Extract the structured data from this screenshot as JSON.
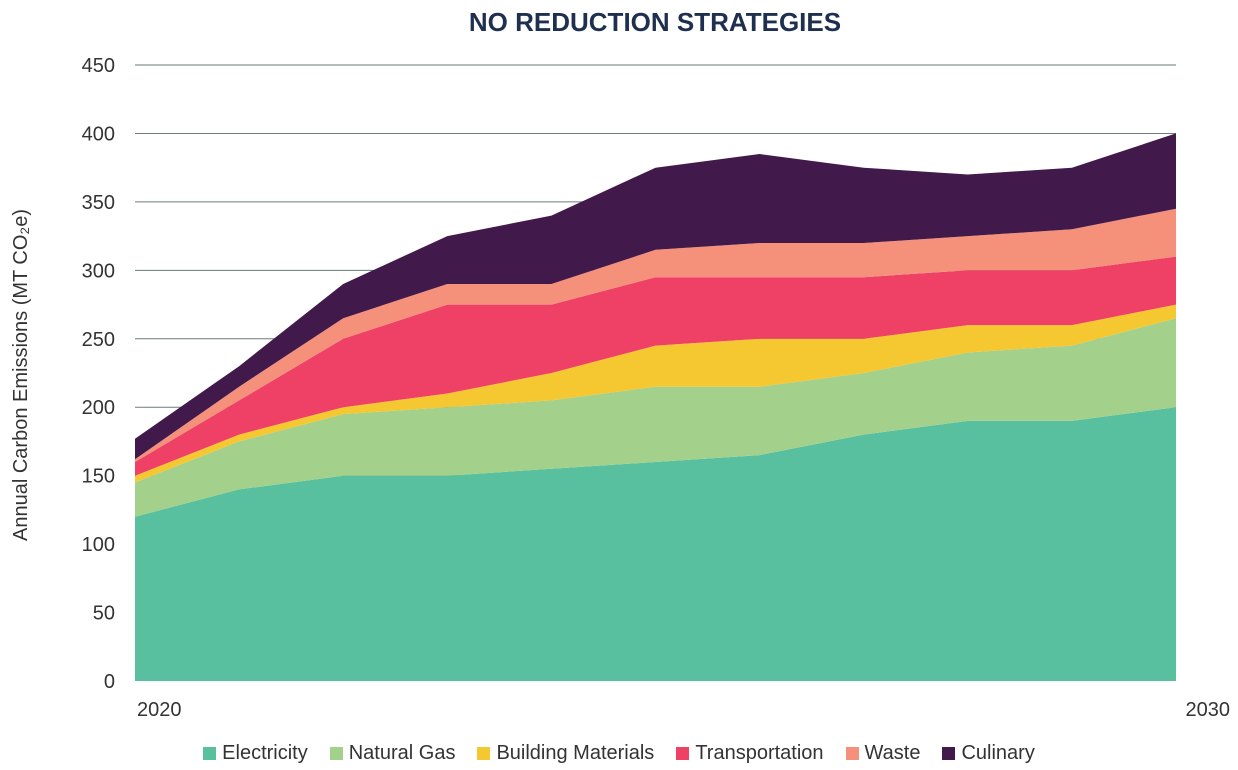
{
  "chart_data": {
    "type": "area",
    "stacked": true,
    "title": "NO REDUCTION STRATEGIES",
    "ylabel": "Annual Carbon Emissions (MT CO₂e)",
    "xlabel": "",
    "x": [
      2020,
      2021,
      2022,
      2023,
      2024,
      2025,
      2026,
      2027,
      2028,
      2029,
      2030
    ],
    "x_tick_labels": [
      "2020",
      "2030"
    ],
    "ylim": [
      0,
      450
    ],
    "y_ticks": [
      0,
      50,
      100,
      150,
      200,
      250,
      300,
      350,
      400,
      450
    ],
    "grid": "horizontal",
    "legend_position": "bottom",
    "series": [
      {
        "name": "Electricity",
        "color": "#58bf9f",
        "values": [
          120,
          140,
          150,
          150,
          155,
          160,
          165,
          180,
          190,
          190,
          200
        ]
      },
      {
        "name": "Natural Gas",
        "color": "#a3d18c",
        "values": [
          25,
          35,
          45,
          50,
          50,
          55,
          50,
          45,
          50,
          55,
          65
        ]
      },
      {
        "name": "Building Materials",
        "color": "#f5c832",
        "values": [
          5,
          5,
          5,
          10,
          20,
          30,
          35,
          25,
          20,
          15,
          10
        ]
      },
      {
        "name": "Transportation",
        "color": "#ef4066",
        "values": [
          10,
          25,
          50,
          65,
          50,
          50,
          45,
          45,
          40,
          40,
          35
        ]
      },
      {
        "name": "Waste",
        "color": "#f5907a",
        "values": [
          2,
          10,
          15,
          15,
          15,
          20,
          25,
          25,
          25,
          30,
          35
        ]
      },
      {
        "name": "Culinary",
        "color": "#41194b",
        "values": [
          15,
          15,
          25,
          35,
          50,
          60,
          65,
          55,
          45,
          45,
          55
        ]
      }
    ]
  }
}
